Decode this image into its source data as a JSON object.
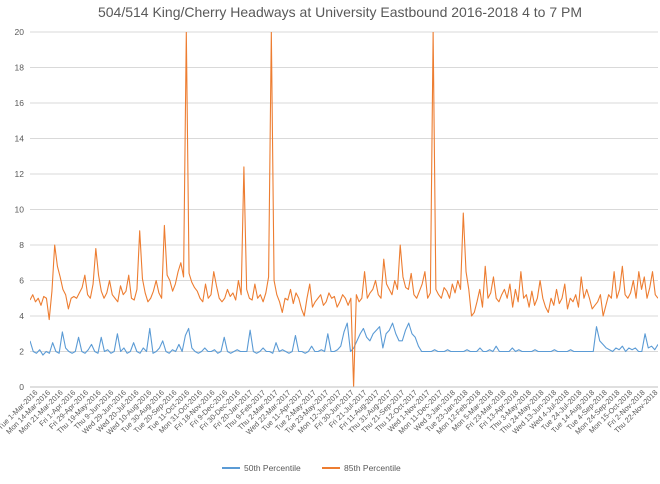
{
  "chart_data": {
    "type": "line",
    "title": "504/514 King/Cherry Headways at University Eastbound 2016-2018 4 to 7 PM",
    "xlabel": "",
    "ylabel": "",
    "ylim": [
      0,
      20
    ],
    "y_ticks": [
      "0",
      "2",
      "4",
      "6",
      "8",
      "10",
      "12",
      "14",
      "16",
      "18",
      "20"
    ],
    "grid": "horizontal",
    "legend_position": "bottom",
    "x_tick_labels": [
      "Tue 1-Mar-2016",
      "Mon 14-Mar-2016",
      "Mon 21-Mar-2016",
      "Fri 1-Apr-2016",
      "Fri 29-Apr-2016",
      "Thu 19-May-2016",
      "Thu 9-Jun-2016",
      "Wed 29-Jun-2016",
      "Wed 20-Jul-2016",
      "Wed 10-Aug-2016",
      "Tue 30-Aug-2016",
      "Tue 20-Sep-2016",
      "Tue 11-Oct-2016",
      "Mon 31-Oct-2016",
      "Fri 18-Nov-2016",
      "Fri 9-Dec-2016",
      "Fri 30-Dec-2016",
      "Fri 20-Jan-2017",
      "Thu 9-Feb-2017",
      "Thu 2-Mar-2017",
      "Wed 22-Mar-2017",
      "Tue 11-Apr-2017",
      "Tue 2-May-2017",
      "Tue 23-May-2017",
      "Mon 12-Jun-2017",
      "Fri 30-Jun-2017",
      "Fri 21-Jul-2017",
      "Fri 11-Aug-2017",
      "Thu 31-Aug-2017",
      "Thu 21-Sep-2017",
      "Thu 12-Oct-2017",
      "Wed 1-Nov-2017",
      "Mon 11-Dec-2017",
      "Wed 3-Jan-2018",
      "Tue 23-Jan-2018",
      "Mon 12-Feb-2018",
      "Mon 5-Mar-2018",
      "Fri 23-Mar-2018",
      "Fri 13-Apr-2018",
      "Thu 3-May-2018",
      "Thu 24-May-2018",
      "Wed 13-Jun-2018",
      "Wed 4-Jul-2018",
      "Tue 24-Jul-2018",
      "Tue 14-Aug-2018",
      "Tue 4-Sep-2018",
      "Mon 24-Sep-2018",
      "Mon 15-Oct-2018",
      "Fri 2-Nov-2018",
      "Thu 22-Nov-2018"
    ],
    "series": [
      {
        "name": "50th Percentile",
        "color": "#5B9BD5",
        "values": [
          2.6,
          2.0,
          1.9,
          2.1,
          1.8,
          2.0,
          1.9,
          2.5,
          2.0,
          1.9,
          3.1,
          2.2,
          2.0,
          1.9,
          2.0,
          2.8,
          2.0,
          1.9,
          2.1,
          2.4,
          2.0,
          1.9,
          2.8,
          2.0,
          2.1,
          1.9,
          2.0,
          3.0,
          2.0,
          2.2,
          1.9,
          2.0,
          2.5,
          2.0,
          1.9,
          2.2,
          2.0,
          3.3,
          1.9,
          2.0,
          2.2,
          2.6,
          2.0,
          1.9,
          2.1,
          2.0,
          2.4,
          2.0,
          2.9,
          3.3,
          2.2,
          2.0,
          1.9,
          2.0,
          2.2,
          2.0,
          2.0,
          2.1,
          1.9,
          2.0,
          2.8,
          2.0,
          1.9,
          2.0,
          2.1,
          2.0,
          2.0,
          2.0,
          3.2,
          2.0,
          1.9,
          2.0,
          2.2,
          2.0,
          2.0,
          1.9,
          2.5,
          2.0,
          2.1,
          2.0,
          1.9,
          2.0,
          2.9,
          2.0,
          2.0,
          1.9,
          2.0,
          2.3,
          2.0,
          2.0,
          2.1,
          2.0,
          3.0,
          2.0,
          2.0,
          2.1,
          2.3,
          3.1,
          3.6,
          2.0,
          2.2,
          2.6,
          3.0,
          3.3,
          2.8,
          2.6,
          3.0,
          3.2,
          3.4,
          2.2,
          3.0,
          3.2,
          3.6,
          3.0,
          2.6,
          2.6,
          3.2,
          3.6,
          3.0,
          2.8,
          2.3,
          2.0,
          2.0,
          2.0,
          2.0,
          2.1,
          2.0,
          2.0,
          2.0,
          2.1,
          2.0,
          2.0,
          2.0,
          2.0,
          2.0,
          2.1,
          2.0,
          2.0,
          2.0,
          2.2,
          2.0,
          2.0,
          2.1,
          2.0,
          2.3,
          2.0,
          2.0,
          2.0,
          2.0,
          2.2,
          2.0,
          2.1,
          2.0,
          2.0,
          2.0,
          2.0,
          2.1,
          2.0,
          2.0,
          2.0,
          2.0,
          2.0,
          2.1,
          2.0,
          2.0,
          2.0,
          2.0,
          2.1,
          2.0,
          2.0,
          2.0,
          2.0,
          2.0,
          2.0,
          2.0,
          3.4,
          2.6,
          2.4,
          2.2,
          2.1,
          2.0,
          2.2,
          2.1,
          2.3,
          2.0,
          2.2,
          2.1,
          2.2,
          2.0,
          2.0,
          3.0,
          2.2,
          2.3,
          2.1,
          2.4
        ]
      },
      {
        "name": "85th Percentile",
        "color": "#ED7D31",
        "values": [
          4.9,
          5.2,
          4.8,
          5.0,
          4.6,
          5.1,
          5.0,
          3.8,
          5.4,
          8.0,
          6.8,
          6.2,
          5.5,
          5.2,
          4.4,
          5.0,
          5.1,
          5.0,
          5.3,
          5.6,
          6.3,
          5.2,
          5.0,
          5.8,
          7.8,
          6.3,
          5.4,
          5.0,
          5.3,
          6.0,
          5.2,
          5.0,
          4.8,
          5.7,
          5.2,
          5.4,
          6.3,
          5.0,
          4.9,
          5.5,
          8.8,
          6.1,
          5.3,
          4.8,
          5.0,
          5.4,
          6.0,
          5.3,
          5.0,
          9.1,
          6.3,
          6.0,
          5.4,
          5.8,
          6.5,
          7.0,
          6.2,
          20.0,
          6.4,
          5.9,
          5.6,
          5.4,
          5.0,
          4.8,
          5.8,
          5.0,
          5.2,
          6.5,
          5.7,
          5.0,
          4.8,
          5.0,
          5.5,
          5.1,
          5.3,
          4.9,
          6.0,
          5.2,
          12.4,
          5.5,
          5.0,
          4.9,
          5.8,
          5.0,
          5.2,
          4.8,
          5.3,
          6.2,
          20.0,
          6.0,
          5.2,
          4.8,
          4.2,
          5.0,
          4.9,
          5.5,
          4.7,
          5.3,
          5.0,
          4.4,
          4.0,
          5.0,
          5.8,
          4.5,
          4.8,
          5.0,
          5.2,
          4.6,
          4.8,
          5.3,
          5.0,
          5.1,
          4.5,
          4.8,
          5.2,
          5.0,
          4.6,
          5.0,
          0.0,
          5.2,
          4.8,
          5.0,
          6.5,
          5.0,
          5.3,
          5.5,
          6.0,
          5.2,
          5.0,
          7.2,
          5.8,
          5.5,
          5.2,
          6.0,
          5.5,
          8.0,
          6.2,
          5.6,
          5.5,
          6.4,
          5.2,
          5.0,
          5.4,
          5.8,
          6.5,
          5.0,
          5.3,
          20.0,
          5.5,
          5.2,
          5.0,
          5.6,
          5.4,
          5.0,
          5.8,
          5.3,
          6.0,
          5.5,
          9.8,
          6.5,
          5.5,
          4.0,
          4.2,
          4.8,
          5.5,
          4.5,
          6.8,
          5.0,
          5.3,
          6.2,
          5.0,
          4.8,
          5.2,
          5.5,
          5.0,
          5.8,
          4.5,
          5.5,
          4.8,
          6.5,
          5.0,
          5.2,
          4.5,
          5.4,
          4.6,
          5.0,
          6.0,
          5.0,
          4.5,
          4.2,
          5.0,
          4.6,
          5.5,
          4.7,
          5.0,
          5.8,
          4.4,
          5.0,
          4.8,
          5.2,
          4.5,
          6.2,
          5.0,
          5.5,
          5.0,
          4.4,
          4.6,
          4.8,
          5.2,
          4.0,
          4.6,
          5.2,
          5.0,
          6.5,
          5.0,
          5.5,
          6.8,
          5.2,
          5.0,
          5.3,
          6.0,
          5.0,
          6.5,
          5.5,
          6.2,
          5.0,
          5.6,
          6.5,
          5.2,
          5.0
        ]
      }
    ]
  }
}
